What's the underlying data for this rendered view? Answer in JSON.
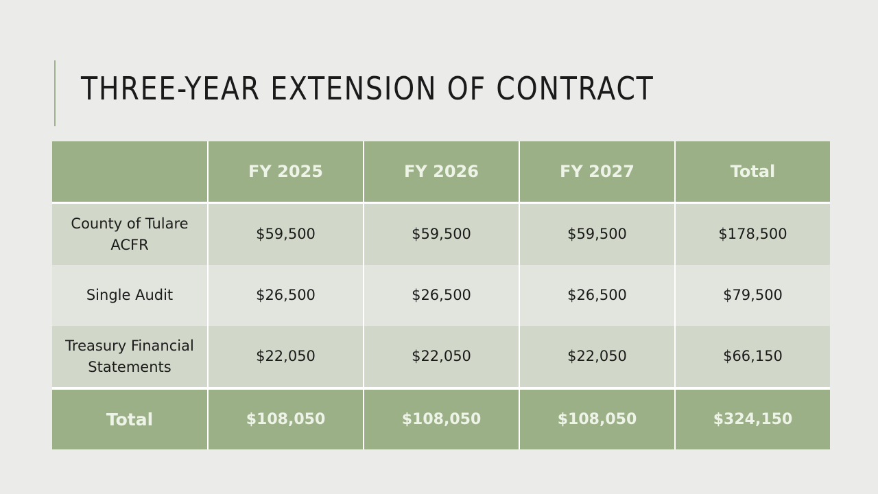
{
  "slide": {
    "title": "THREE-YEAR EXTENSION OF CONTRACT"
  },
  "table": {
    "headers": [
      "",
      "FY 2025",
      "FY 2026",
      "FY 2027",
      "Total"
    ],
    "rows": [
      {
        "label": "County of Tulare ACFR",
        "fy2025": "$59,500",
        "fy2026": "$59,500",
        "fy2027": "$59,500",
        "total": "$178,500"
      },
      {
        "label": "Single Audit",
        "fy2025": "$26,500",
        "fy2026": "$26,500",
        "fy2027": "$26,500",
        "total": "$79,500"
      },
      {
        "label": "Treasury Financial Statements",
        "fy2025": "$22,050",
        "fy2026": "$22,050",
        "fy2027": "$22,050",
        "total": "$66,150"
      }
    ],
    "totals": {
      "label": "Total",
      "fy2025": "$108,050",
      "fy2026": "$108,050",
      "fy2027": "$108,050",
      "total": "$324,150"
    }
  },
  "colors": {
    "background": "#ebebea",
    "header_fill": "#9cb088",
    "row_dark": "#d1d8c9",
    "row_light": "#e2e5de",
    "accent": "#9fb08c"
  }
}
